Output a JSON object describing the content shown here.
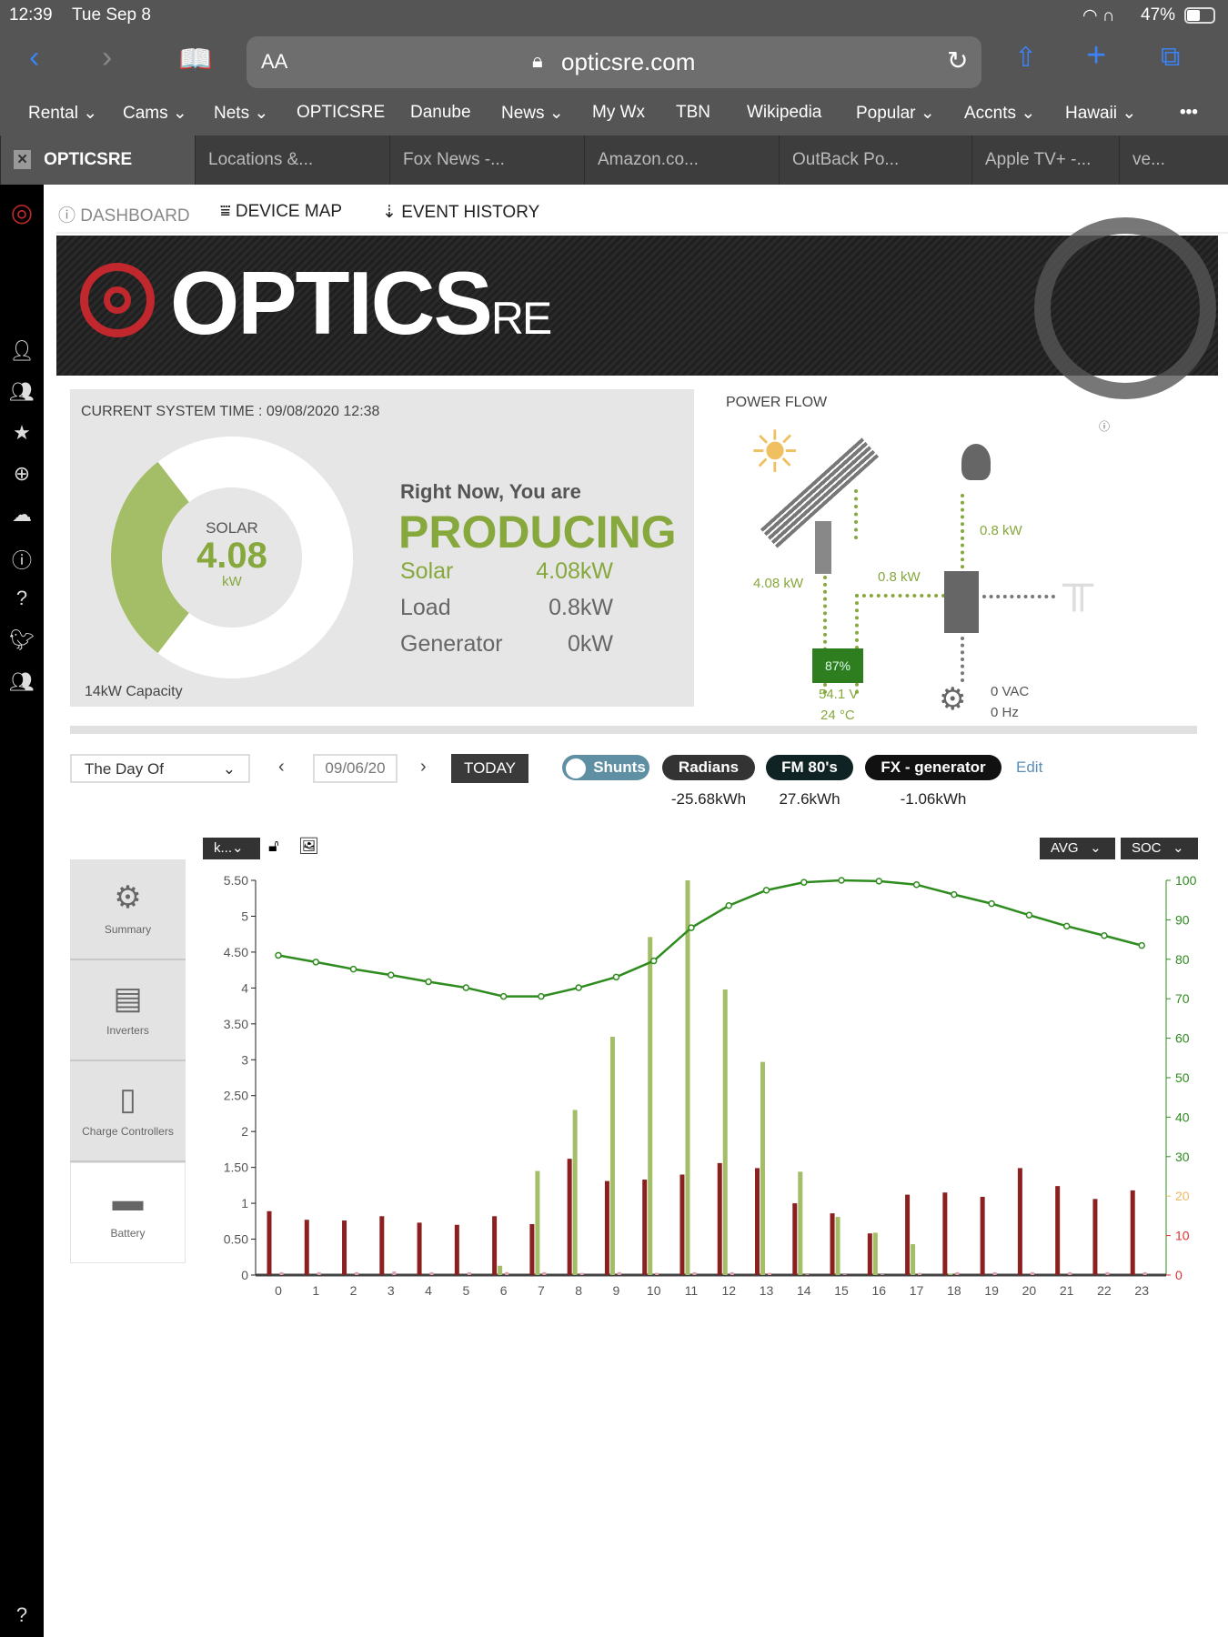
{
  "status": {
    "time": "12:39",
    "date": "Tue Sep 8",
    "battery": "47%"
  },
  "browser": {
    "url": "opticsre.com",
    "text_size": "AA",
    "bookmarks": [
      "Rental",
      "Cams",
      "Nets",
      "OPTICSRE",
      "Danube",
      "News",
      "My Wx",
      "TBN",
      "Wikipedia",
      "Popular",
      "Accnts",
      "Hawaii"
    ],
    "bookmark_dropdown": [
      true,
      true,
      true,
      false,
      false,
      true,
      false,
      false,
      false,
      true,
      true,
      true
    ],
    "tabs": [
      "OPTICSRE",
      "Locations &...",
      "Fox News -...",
      "Amazon.co...",
      "OutBack Po...",
      "Apple TV+ -...",
      "ve..."
    ]
  },
  "nav": {
    "dashboard": "DASHBOARD",
    "device_map": "DEVICE MAP",
    "event_history": "EVENT HISTORY"
  },
  "brand": {
    "logo_main": "OPTICS",
    "logo_suffix": "RE",
    "accent": "#86a83c",
    "brand_red": "#c0282d"
  },
  "summary": {
    "system_time": "CURRENT SYSTEM TIME : 09/08/2020 12:38",
    "gauge_label": "SOLAR",
    "gauge_value": "4.08",
    "gauge_unit": "kW",
    "capacity": "14kW Capacity",
    "gauge_fraction": 0.29,
    "headline": "Right Now, You are",
    "state": "PRODUCING",
    "rows": [
      {
        "label": "Solar",
        "value": "4.08kW"
      },
      {
        "label": "Load",
        "value": "0.8kW"
      },
      {
        "label": "Generator",
        "value": "0kW"
      }
    ]
  },
  "power_flow": {
    "title": "POWER FLOW",
    "solar_kw": "4.08 kW",
    "inverter_kw": "0.8 kW",
    "load_kw": "0.8 kW",
    "battery_soc": "87%",
    "battery_v": "54.1 V",
    "battery_temp": "24 °C",
    "gen_vac": "0 VAC",
    "gen_hz": "0 Hz"
  },
  "controls": {
    "range": "The Day Of",
    "date": "09/06/20",
    "today": "TODAY",
    "edit": "Edit",
    "pills": [
      {
        "label": "Shunts",
        "value": ""
      },
      {
        "label": "Radians",
        "value": "-25.68kWh"
      },
      {
        "label": "FM 80's",
        "value": "27.6kWh"
      },
      {
        "label": "FX - generator",
        "value": "-1.06kWh"
      }
    ],
    "unit_select": "k...",
    "avg": "AVG",
    "soc": "SOC"
  },
  "side_tabs": [
    "Summary",
    "Inverters",
    "Charge Controllers",
    "Battery"
  ],
  "chart_data": {
    "type": "bar",
    "categories": [
      "0",
      "1",
      "2",
      "3",
      "4",
      "5",
      "6",
      "7",
      "8",
      "9",
      "10",
      "11",
      "12",
      "13",
      "14",
      "15",
      "16",
      "17",
      "18",
      "19",
      "20",
      "21",
      "22",
      "23"
    ],
    "yticks": [
      "0",
      "0.50",
      "1",
      "1.50",
      "2",
      "2.50",
      "3",
      "3.50",
      "4",
      "4.50",
      "5",
      "5.50"
    ],
    "ylim": [
      0,
      5.5
    ],
    "y2ticks": [
      "0",
      "10",
      "20",
      "30",
      "40",
      "50",
      "60",
      "70",
      "80",
      "90",
      "100"
    ],
    "y2lim": [
      0,
      100
    ],
    "series": [
      {
        "type": "bar",
        "color": "#8b2020",
        "values": [
          0.89,
          0.77,
          0.76,
          0.82,
          0.73,
          0.7,
          0.82,
          0.71,
          1.62,
          1.31,
          1.33,
          1.4,
          1.56,
          1.49,
          1.0,
          0.86,
          0.58,
          1.12,
          1.15,
          1.09,
          1.49,
          1.24,
          1.06,
          1.18
        ]
      },
      {
        "type": "bar",
        "color": "#a3be67",
        "values": [
          0,
          0,
          0,
          0,
          0,
          0,
          0.13,
          1.45,
          2.3,
          3.32,
          4.71,
          5.5,
          3.98,
          2.97,
          1.44,
          0.81,
          0.59,
          0.43,
          0.02,
          0,
          0,
          0,
          0,
          0
        ]
      },
      {
        "type": "bar",
        "color": "#e4a0a8",
        "values": [
          0.04,
          0.04,
          0.04,
          0.05,
          0.04,
          0.04,
          0.04,
          0.04,
          0.03,
          0.04,
          0.03,
          0.04,
          0.04,
          0.03,
          0.01,
          0.01,
          0.01,
          0.03,
          0.04,
          0.04,
          0.04,
          0.04,
          0.04,
          0.04
        ]
      },
      {
        "type": "line",
        "axis": "right",
        "color": "#2e8b1e",
        "values": [
          81,
          79.3,
          77.5,
          76,
          74.3,
          72.8,
          70.6,
          70.6,
          72.8,
          75.5,
          79.6,
          88,
          93.6,
          97.5,
          99.5,
          100,
          99.8,
          98.9,
          96.4,
          94.1,
          91.2,
          88.4,
          86,
          83.5
        ]
      }
    ]
  }
}
